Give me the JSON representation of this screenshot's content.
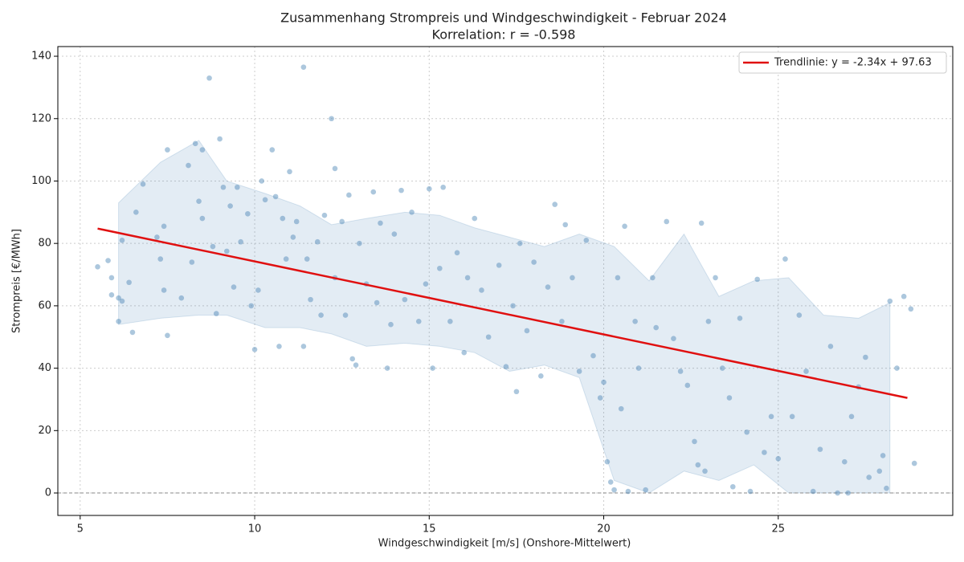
{
  "chart_data": {
    "type": "scatter",
    "title": "Zusammenhang Strompreis und Windgeschwindigkeit - Februar 2024",
    "subtitle": "Korrelation: r = -0.598",
    "x_label": "Windgeschwindigkeit [m/s] (Onshore-Mittelwert)",
    "y_label": "Strompreis [€/MWh]",
    "xlim": [
      4.36,
      30.0
    ],
    "ylim": [
      -7.2,
      143.1
    ],
    "xticks": [
      5,
      10,
      15,
      20,
      25
    ],
    "yticks": [
      0,
      20,
      40,
      60,
      80,
      100,
      120,
      140
    ],
    "grid": true,
    "legend": "upper right",
    "hline": 0,
    "points": {
      "color": "#4682b4",
      "x": [
        5.5,
        5.8,
        5.9,
        5.9,
        6.1,
        6.1,
        6.2,
        6.2,
        6.4,
        6.5,
        6.6,
        6.8,
        7.2,
        7.3,
        7.4,
        7.4,
        7.5,
        7.5,
        7.9,
        8.1,
        8.2,
        8.3,
        8.4,
        8.5,
        8.5,
        8.7,
        8.8,
        8.9,
        9.0,
        9.1,
        9.2,
        9.3,
        9.4,
        9.5,
        9.6,
        9.8,
        9.9,
        10.0,
        10.1,
        10.2,
        10.3,
        10.5,
        10.6,
        10.7,
        10.8,
        10.9,
        11.0,
        11.1,
        11.2,
        11.4,
        11.4,
        11.5,
        11.6,
        11.8,
        11.9,
        12.0,
        12.2,
        12.3,
        12.3,
        12.5,
        12.6,
        12.7,
        12.8,
        12.9,
        13.0,
        13.2,
        13.4,
        13.5,
        13.6,
        13.8,
        13.9,
        14.0,
        14.2,
        14.3,
        14.5,
        14.7,
        14.9,
        15.0,
        15.1,
        15.3,
        15.4,
        15.6,
        15.8,
        16.0,
        16.1,
        16.3,
        16.5,
        16.7,
        17.0,
        17.2,
        17.4,
        17.5,
        17.6,
        17.8,
        18.0,
        18.2,
        18.4,
        18.6,
        18.8,
        18.9,
        19.1,
        19.3,
        19.5,
        19.7,
        19.9,
        20.0,
        20.1,
        20.2,
        20.3,
        20.4,
        20.5,
        20.6,
        20.7,
        20.9,
        21.0,
        21.2,
        21.4,
        21.5,
        21.8,
        22.0,
        22.2,
        22.4,
        22.6,
        22.7,
        22.8,
        22.9,
        23.0,
        23.2,
        23.4,
        23.6,
        23.7,
        23.9,
        24.1,
        24.2,
        24.4,
        24.6,
        24.8,
        25.0,
        25.2,
        25.4,
        25.6,
        25.8,
        26.0,
        26.2,
        26.5,
        26.7,
        26.9,
        27.0,
        27.1,
        27.3,
        27.5,
        27.6,
        27.9,
        28.0,
        28.1,
        28.2,
        28.4,
        28.6,
        28.8,
        28.9
      ],
      "y": [
        72.5,
        74.5,
        69,
        63.5,
        62.5,
        55,
        81,
        61.5,
        67.5,
        51.5,
        90,
        99,
        82,
        75,
        85.5,
        65,
        50.5,
        110,
        62.5,
        105,
        74,
        112,
        93.5,
        88,
        110,
        133,
        79,
        57.5,
        113.5,
        98,
        77.5,
        92,
        66,
        98,
        80.5,
        89.5,
        60,
        46,
        65,
        100,
        94,
        110,
        95,
        47,
        88,
        75,
        103,
        82,
        87,
        136.5,
        47,
        75,
        62,
        80.5,
        57,
        89,
        120,
        104,
        69,
        87,
        57,
        95.5,
        43,
        41,
        80,
        67,
        96.5,
        61,
        86.5,
        40,
        54,
        83,
        97,
        62,
        90,
        55,
        67,
        97.5,
        40,
        72,
        98,
        55,
        77,
        45,
        69,
        88,
        65,
        50,
        73,
        40.5,
        60,
        32.5,
        80,
        52,
        74,
        37.5,
        66,
        92.5,
        55,
        86,
        69,
        39,
        81,
        44,
        30.5,
        35.5,
        10,
        3.5,
        1,
        69,
        27,
        85.5,
        0.5,
        55,
        40,
        1,
        69,
        53,
        87,
        49.5,
        39,
        34.5,
        16.5,
        9,
        86.5,
        7,
        55,
        69,
        40,
        30.5,
        2,
        56,
        19.5,
        0.5,
        68.5,
        13,
        24.5,
        11,
        75,
        24.5,
        57,
        39,
        0.5,
        14,
        47,
        0,
        10,
        0,
        24.5,
        34,
        43.5,
        5,
        7,
        12,
        1.5,
        61.5,
        40,
        63,
        59,
        9.5
      ]
    },
    "band": {
      "color": "#4682b4",
      "x": [
        6.1,
        7.3,
        8.4,
        9.2,
        10.3,
        11.3,
        12.2,
        13.2,
        14.3,
        15.3,
        16.3,
        17.3,
        18.3,
        19.3,
        20.3,
        21.3,
        22.3,
        23.3,
        24.3,
        25.3,
        26.3,
        27.3,
        28.2
      ],
      "upper": [
        93,
        106,
        113,
        100,
        96,
        92,
        86,
        88,
        90,
        89,
        85,
        82,
        79,
        83,
        79,
        68,
        83,
        63,
        68,
        69,
        57,
        56,
        61
      ],
      "lower": [
        54,
        56,
        57,
        57,
        53,
        53,
        51,
        47,
        48,
        47,
        45,
        39,
        41,
        37,
        4,
        0,
        7,
        4,
        9,
        0,
        0,
        0,
        0
      ]
    },
    "trend": {
      "name": "Trendlinie: y = -2.34x + 97.63",
      "color": "#e01010",
      "x": [
        5.5,
        28.7
      ],
      "values": [
        84.76,
        30.47
      ]
    }
  }
}
